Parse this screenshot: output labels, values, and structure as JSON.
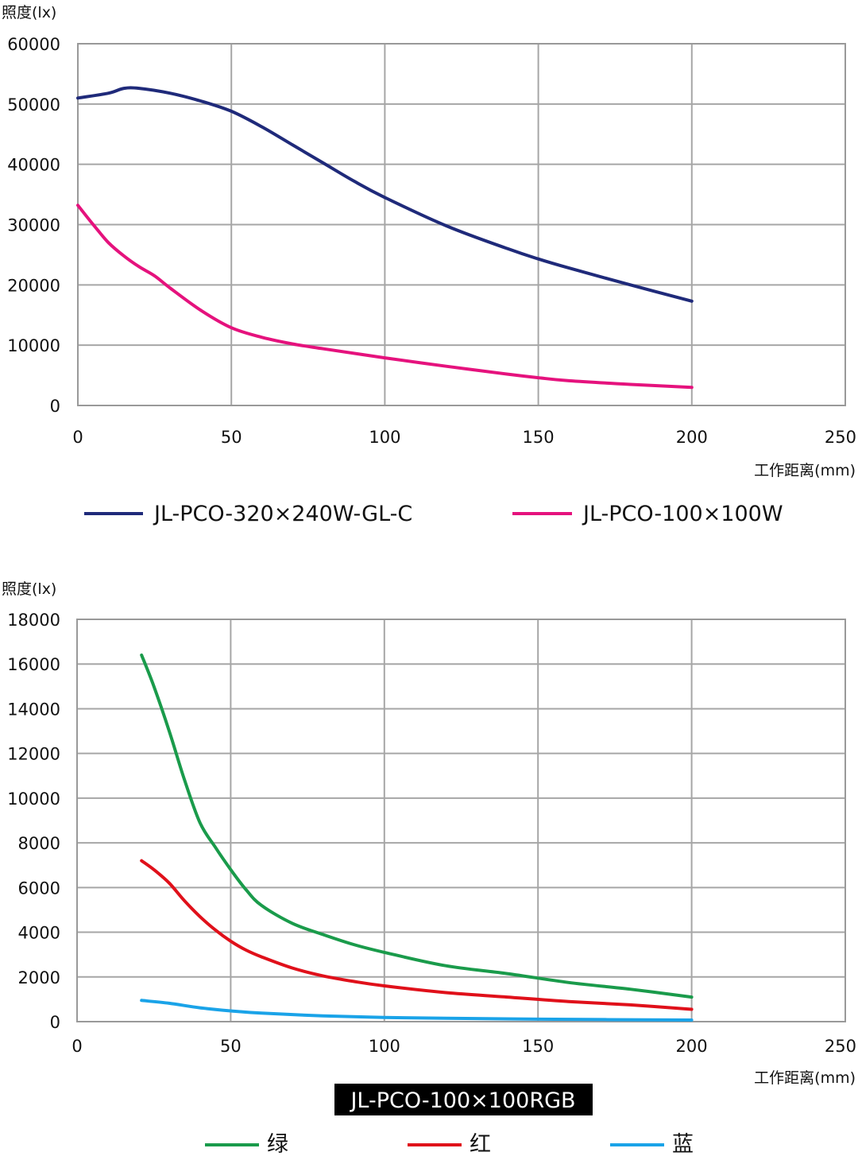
{
  "chart_data": [
    {
      "type": "line",
      "ylabel": "照度(lx)",
      "xlabel": "工作距离(mm)",
      "xlim": [
        0,
        250
      ],
      "ylim": [
        0,
        60000
      ],
      "xticks": [
        "0",
        "50",
        "100",
        "150",
        "200",
        "250"
      ],
      "yticks": [
        "0",
        "10000",
        "20000",
        "30000",
        "40000",
        "50000",
        "60000"
      ],
      "grid": true,
      "legend_position": "bottom",
      "series": [
        {
          "name": "JL-PCO-320×240W-GL-C",
          "color": "#1f2a7a",
          "x": [
            0,
            10,
            15,
            20,
            30,
            40,
            50,
            60,
            70,
            80,
            90,
            100,
            120,
            140,
            150,
            160,
            180,
            200
          ],
          "values": [
            51000,
            51800,
            52600,
            52600,
            51800,
            50500,
            48800,
            46200,
            43200,
            40200,
            37200,
            34500,
            29800,
            26000,
            24300,
            22800,
            20000,
            17300
          ]
        },
        {
          "name": "JL-PCO-100×100W",
          "color": "#e5127d",
          "x": [
            0,
            5,
            10,
            15,
            20,
            25,
            30,
            40,
            50,
            60,
            70,
            80,
            100,
            120,
            140,
            150,
            160,
            180,
            200
          ],
          "values": [
            33200,
            30000,
            27000,
            24800,
            23000,
            21500,
            19500,
            15800,
            12900,
            11300,
            10200,
            9400,
            7900,
            6500,
            5200,
            4600,
            4100,
            3500,
            3000
          ]
        }
      ]
    },
    {
      "type": "line",
      "ylabel": "照度(lx)",
      "xlabel": "工作距离(mm)",
      "title": "JL-PCO-100×100RGB",
      "xlim": [
        0,
        250
      ],
      "ylim": [
        0,
        18000
      ],
      "xticks": [
        "0",
        "50",
        "100",
        "150",
        "200",
        "250"
      ],
      "yticks": [
        "0",
        "2000",
        "4000",
        "6000",
        "8000",
        "10000",
        "12000",
        "14000",
        "16000",
        "18000"
      ],
      "grid": true,
      "legend_position": "bottom",
      "series": [
        {
          "name": "绿",
          "color": "#1a9b4b",
          "x": [
            21,
            25,
            30,
            35,
            40,
            45,
            50,
            55,
            60,
            70,
            80,
            90,
            100,
            120,
            140,
            160,
            180,
            200
          ],
          "values": [
            16400,
            15000,
            13000,
            10800,
            8900,
            7800,
            6800,
            5900,
            5200,
            4400,
            3900,
            3450,
            3100,
            2500,
            2150,
            1750,
            1450,
            1100
          ]
        },
        {
          "name": "红",
          "color": "#e0101a",
          "x": [
            21,
            25,
            30,
            35,
            40,
            45,
            50,
            55,
            60,
            70,
            80,
            90,
            100,
            120,
            140,
            160,
            180,
            200
          ],
          "values": [
            7200,
            6800,
            6200,
            5400,
            4700,
            4100,
            3600,
            3200,
            2900,
            2400,
            2050,
            1800,
            1600,
            1300,
            1100,
            900,
            750,
            550
          ]
        },
        {
          "name": "蓝",
          "color": "#1aa3e8",
          "x": [
            21,
            30,
            40,
            50,
            60,
            80,
            100,
            120,
            150,
            200
          ],
          "values": [
            950,
            820,
            620,
            480,
            380,
            260,
            190,
            150,
            110,
            70
          ]
        }
      ]
    }
  ]
}
